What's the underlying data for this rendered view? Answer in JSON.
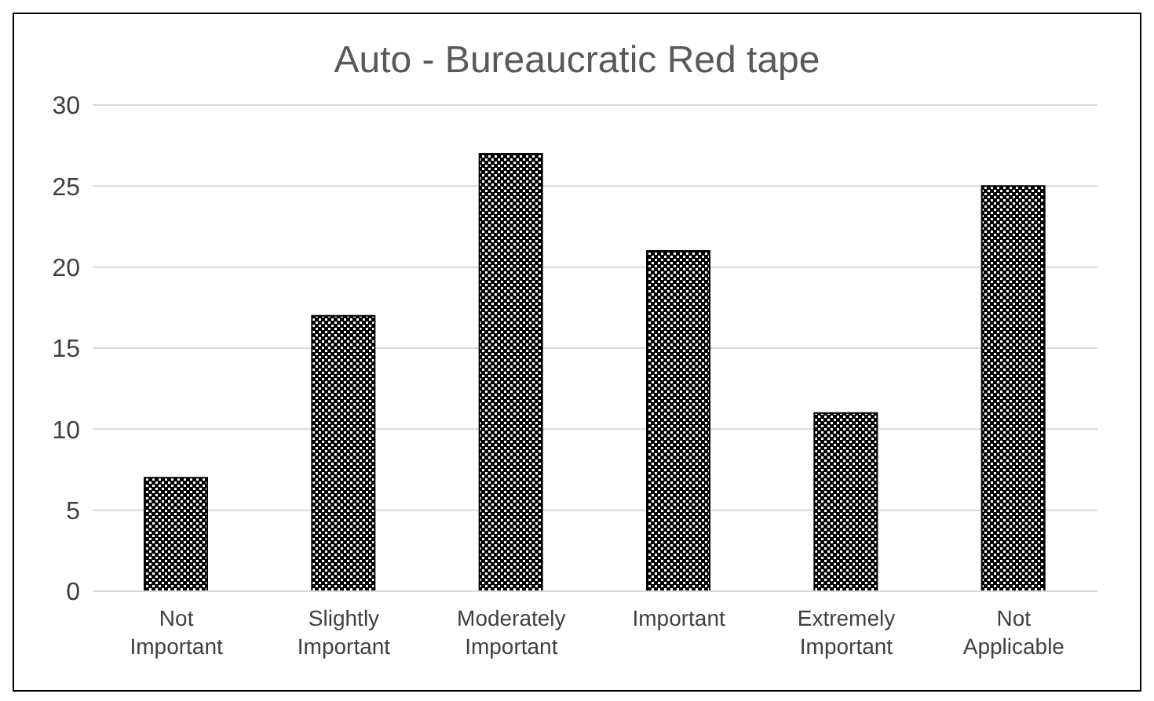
{
  "chart_data": {
    "type": "bar",
    "title": "Auto - Bureaucratic Red tape",
    "categories": [
      "Not Important",
      "Slightly Important",
      "Moderately Important",
      "Important",
      "Extremely Important",
      "Not Applicable"
    ],
    "values": [
      7,
      17,
      27,
      21,
      11,
      25
    ],
    "color": "#000000",
    "ylim": [
      0,
      30
    ],
    "yticks": [
      0,
      5,
      10,
      15,
      20,
      25,
      30
    ],
    "grid": "y"
  }
}
